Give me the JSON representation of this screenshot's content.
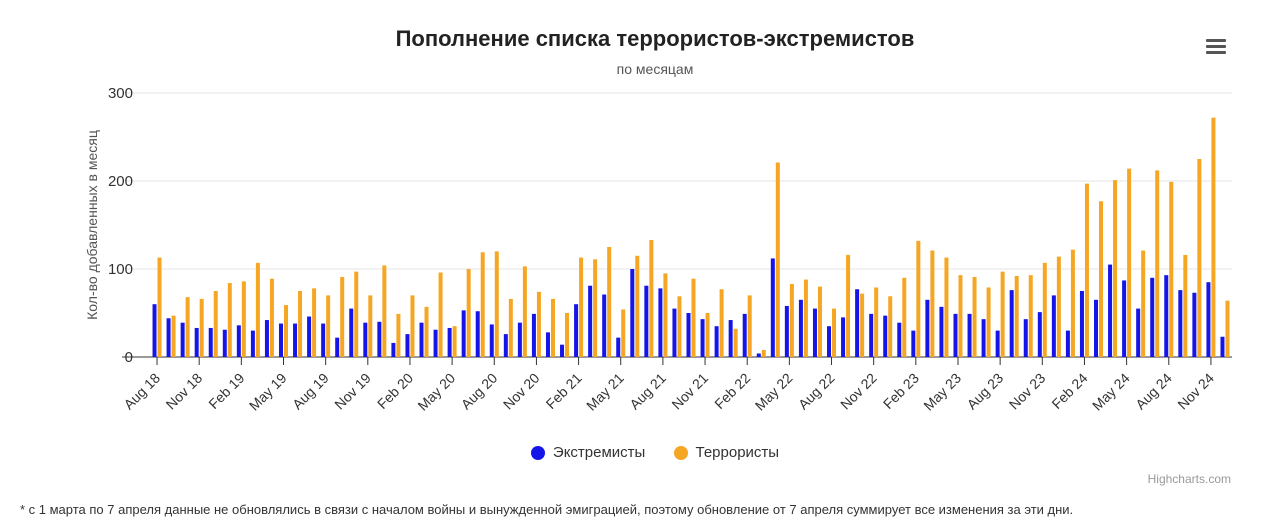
{
  "chart_data": {
    "type": "bar",
    "title": "Пополнение списка террористов-экстремистов",
    "subtitle": "по месяцам",
    "ylabel": "Кол-во добавленных в месяц",
    "xlabel": "",
    "ylim": [
      0,
      300
    ],
    "yticks": [
      0,
      100,
      200,
      300
    ],
    "grid": true,
    "legend_position": "bottom-center",
    "categories": [
      "Aug 18",
      "Sep 18",
      "Oct 18",
      "Nov 18",
      "Dec 18",
      "Jan 19",
      "Feb 19",
      "Mar 19",
      "Apr 19",
      "May 19",
      "Jun 19",
      "Jul 19",
      "Aug 19",
      "Sep 19",
      "Oct 19",
      "Nov 19",
      "Dec 19",
      "Jan 20",
      "Feb 20",
      "Mar 20",
      "Apr 20",
      "May 20",
      "Jun 20",
      "Jul 20",
      "Aug 20",
      "Sep 20",
      "Oct 20",
      "Nov 20",
      "Dec 20",
      "Jan 21",
      "Feb 21",
      "Mar 21",
      "Apr 21",
      "May 21",
      "Jun 21",
      "Jul 21",
      "Aug 21",
      "Sep 21",
      "Oct 21",
      "Nov 21",
      "Dec 21",
      "Jan 22",
      "Feb 22",
      "Mar 22",
      "Apr 22",
      "May 22",
      "Jun 22",
      "Jul 22",
      "Aug 22",
      "Sep 22",
      "Oct 22",
      "Nov 22",
      "Dec 22",
      "Jan 23",
      "Feb 23",
      "Mar 23",
      "Apr 23",
      "May 23",
      "Jun 23",
      "Jul 23",
      "Aug 23",
      "Sep 23",
      "Oct 23",
      "Nov 23",
      "Dec 23",
      "Jan 24",
      "Feb 24",
      "Mar 24",
      "Apr 24",
      "May 24",
      "Jun 24",
      "Jul 24",
      "Aug 24",
      "Sep 24",
      "Oct 24",
      "Nov 24",
      "Dec 24"
    ],
    "tick_labels": [
      "Aug 18",
      "Nov 18",
      "Feb 19",
      "May 19",
      "Aug 19",
      "Nov 19",
      "Feb 20",
      "May 20",
      "Aug 20",
      "Nov 20",
      "Feb 21",
      "May 21",
      "Aug 21",
      "Nov 21",
      "Feb 22",
      "May 22",
      "Aug 22",
      "Nov 22",
      "Feb 23",
      "May 23",
      "Aug 23",
      "Nov 23",
      "Feb 24",
      "May 24",
      "Aug 24",
      "Nov 24"
    ],
    "series": [
      {
        "name": "Экстремисты",
        "color": "#1515e8",
        "values": [
          60,
          44,
          39,
          33,
          33,
          31,
          36,
          30,
          42,
          38,
          38,
          46,
          38,
          22,
          55,
          39,
          40,
          16,
          26,
          39,
          31,
          33,
          53,
          52,
          37,
          26,
          39,
          49,
          28,
          14,
          60,
          81,
          71,
          22,
          100,
          81,
          78,
          55,
          50,
          43,
          35,
          42,
          49,
          4,
          112,
          58,
          65,
          55,
          35,
          45,
          77,
          49,
          47,
          39,
          30,
          65,
          57,
          49,
          49,
          43,
          30,
          76,
          43,
          51,
          70,
          30,
          75,
          65,
          105,
          87,
          55,
          90,
          93,
          76,
          73,
          85,
          23
        ]
      },
      {
        "name": "Террористы",
        "color": "#f5a623",
        "values": [
          113,
          47,
          68,
          66,
          75,
          84,
          86,
          107,
          89,
          59,
          75,
          78,
          70,
          91,
          97,
          70,
          104,
          49,
          70,
          57,
          96,
          35,
          100,
          119,
          120,
          66,
          103,
          74,
          66,
          50,
          113,
          111,
          125,
          54,
          115,
          133,
          95,
          69,
          89,
          50,
          77,
          32,
          70,
          8,
          221,
          83,
          88,
          80,
          55,
          116,
          72,
          79,
          69,
          90,
          132,
          121,
          113,
          93,
          91,
          79,
          97,
          92,
          93,
          107,
          114,
          122,
          197,
          177,
          201,
          214,
          121,
          212,
          199,
          116,
          225,
          272,
          64
        ]
      }
    ]
  },
  "legend": {
    "extremists": "Экстремисты",
    "terrorists": "Террористы"
  },
  "credits": "Highcharts.com",
  "footnote": "* с 1 марта по 7 апреля данные не обновлялись в связи с началом войны и вынужденной эмиграцией, поэтому обновление от 7 апреля суммирует все изменения за эти дни.",
  "icons": {
    "menu": "hamburger-menu-icon"
  }
}
